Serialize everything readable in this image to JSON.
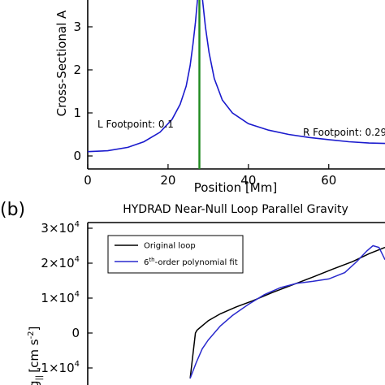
{
  "chart_data": [
    {
      "type": "line",
      "panel_label": "",
      "title": "",
      "xlabel": "Position [Mm]",
      "ylabel": "Cross-Sectional A",
      "xlim": [
        0,
        74
      ],
      "ylim": [
        0,
        4
      ],
      "x_ticks": [
        "0",
        "20",
        "40",
        "60"
      ],
      "y_ticks": [
        "0",
        "1",
        "2",
        "3"
      ],
      "annotations": [
        "L Footpoint: 0.1",
        "R Footpoint: 0.29"
      ],
      "vertical_line_x": 27.8,
      "colors": {
        "curve": "#1a1acd",
        "vline": "#1e8a1e"
      },
      "series": [
        {
          "x": [
            0,
            5,
            10,
            14,
            18,
            21,
            23,
            24.5,
            25.5,
            26.2,
            26.8,
            27.3,
            27.7,
            28.1,
            28.6,
            29.3,
            30.2,
            31.5,
            33.5,
            36,
            40,
            45,
            50,
            55,
            60,
            65,
            70,
            74
          ],
          "y": [
            0.1,
            0.12,
            0.2,
            0.33,
            0.55,
            0.85,
            1.2,
            1.62,
            2.1,
            2.6,
            3.1,
            3.6,
            4.1,
            4.1,
            3.6,
            3.0,
            2.4,
            1.8,
            1.3,
            1.0,
            0.75,
            0.6,
            0.5,
            0.43,
            0.38,
            0.33,
            0.3,
            0.29
          ]
        }
      ]
    },
    {
      "type": "line",
      "panel_label": "(b)",
      "title": "HYDRAD Near-Null Loop Parallel Gravity",
      "xlabel": "",
      "ylabel_main": "g",
      "ylabel_sub": "||",
      "ylabel_units": "[cm s",
      "ylabel_exp": "-2",
      "ylabel_close": "]",
      "xlim": [
        0,
        74
      ],
      "ylim": [
        -15000,
        30000
      ],
      "y_ticks": [
        {
          "value": 30000,
          "mant": "3×10",
          "exp": "4"
        },
        {
          "value": 20000,
          "mant": "2×10",
          "exp": "4"
        },
        {
          "value": 10000,
          "mant": "1×10",
          "exp": "4"
        },
        {
          "value": 0,
          "mant": "0",
          "exp": ""
        },
        {
          "value": -10000,
          "mant": "-1×10",
          "exp": "4"
        }
      ],
      "legend": {
        "position": "top-left",
        "entries": [
          {
            "label": "Original loop",
            "color": "#000000"
          },
          {
            "label_pre": "6",
            "label_sup": "th",
            "label_post": "-order polynomial fit",
            "color": "#2a2acd"
          }
        ]
      },
      "series": [
        {
          "name": "Original loop",
          "color": "#000000",
          "x": [
            25.5,
            26.3,
            26.8,
            27.2,
            27.8,
            30,
            33,
            37,
            41,
            46,
            51,
            56,
            61,
            66,
            70,
            74
          ],
          "y": [
            -13000,
            -5000,
            0,
            800,
            1400,
            3500,
            5500,
            7500,
            9200,
            11600,
            13800,
            16000,
            18300,
            20500,
            22700,
            24500
          ]
        },
        {
          "name": "6th-order polynomial fit",
          "color": "#2a2acd",
          "x": [
            25.5,
            27,
            28.5,
            30,
            33,
            36,
            40,
            44,
            48,
            52,
            56,
            60,
            64,
            67,
            69.5,
            71,
            72.5,
            74
          ],
          "y": [
            -13000,
            -8500,
            -4500,
            -2000,
            2000,
            5000,
            8200,
            11000,
            13000,
            14200,
            14800,
            15500,
            17300,
            20500,
            23500,
            25000,
            24500,
            21000
          ]
        }
      ]
    }
  ]
}
